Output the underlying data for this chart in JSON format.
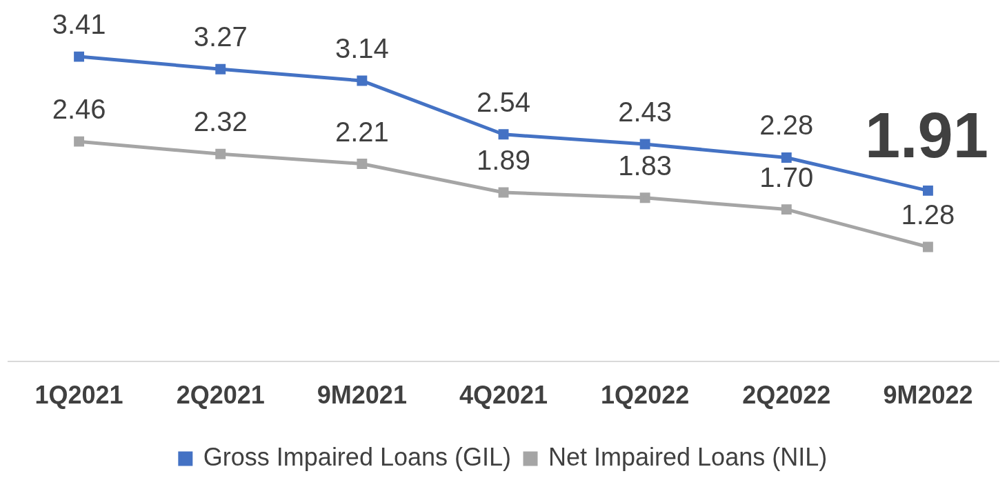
{
  "chart_data": {
    "type": "line",
    "categories": [
      "1Q2021",
      "2Q2021",
      "9M2021",
      "4Q2021",
      "1Q2022",
      "2Q2022",
      "9M2022"
    ],
    "series": [
      {
        "name": "Gross Impaired Loans (GIL)",
        "color": "#4472c4",
        "values": [
          3.41,
          3.27,
          3.14,
          2.54,
          2.43,
          2.28,
          1.91
        ],
        "value_labels": [
          "3.41",
          "3.27",
          "3.14",
          "2.54",
          "2.43",
          "2.28",
          "1.91"
        ]
      },
      {
        "name": "Net Impaired Loans (NIL)",
        "color": "#a5a5a5",
        "values": [
          2.46,
          2.32,
          2.21,
          1.89,
          1.83,
          1.7,
          1.28
        ],
        "value_labels": [
          "2.46",
          "2.32",
          "2.21",
          "1.89",
          "1.83",
          "1.70",
          "1.28"
        ]
      }
    ],
    "marker": "square",
    "line_style": "solid",
    "grid": false,
    "legend": "bottom",
    "tick_labels": "x"
  }
}
